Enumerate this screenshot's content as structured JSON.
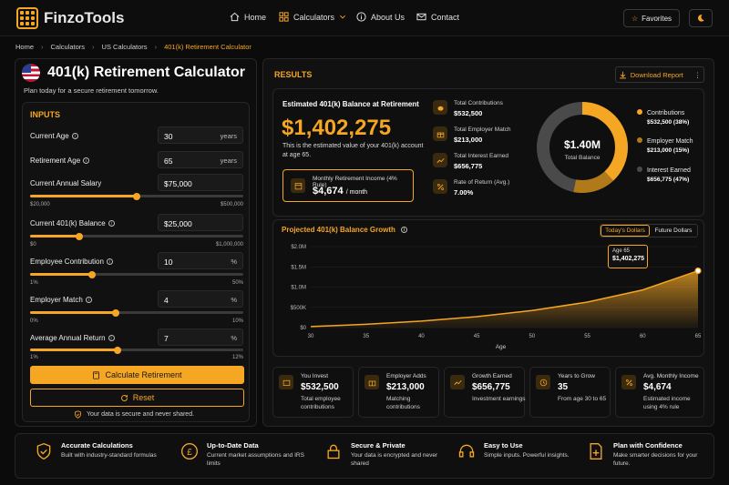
{
  "brand": {
    "name": "FinzoTools"
  },
  "nav": {
    "home": "Home",
    "calculators": "Calculators",
    "about": "About Us",
    "contact": "Contact",
    "favorites": "Favorites"
  },
  "breadcrumb": [
    "Home",
    "Calculators",
    "US Calculators",
    "401(k) Retirement Calculator"
  ],
  "page": {
    "title": "401(k) Retirement Calculator",
    "subtitle": "Plan today for a secure retirement tomorrow."
  },
  "inputs": {
    "heading": "INPUTS",
    "current_age": {
      "label": "Current Age",
      "value": "30",
      "unit": "years"
    },
    "retirement_age": {
      "label": "Retirement Age",
      "value": "65",
      "unit": "years"
    },
    "salary": {
      "label": "Current Annual Salary",
      "value": "$75,000",
      "min": "$20,000",
      "max": "$500,000",
      "level": 0.5
    },
    "balance": {
      "label": "Current 401(k) Balance",
      "value": "$25,000",
      "min": "$0",
      "max": "$1,000,000",
      "level": 0.23
    },
    "contribution": {
      "label": "Employee Contribution",
      "value": "10",
      "unit": "%",
      "min": "1%",
      "max": "50%",
      "level": 0.29
    },
    "match": {
      "label": "Employer Match",
      "value": "4",
      "unit": "%",
      "min": "0%",
      "max": "10%",
      "level": 0.4
    },
    "return": {
      "label": "Average Annual Return",
      "value": "7",
      "unit": "%",
      "min": "1%",
      "max": "12%",
      "level": 0.41
    },
    "calculate": "Calculate Retirement",
    "reset": "Reset",
    "secure": "Your data is secure and never shared."
  },
  "results": {
    "heading": "RESULTS",
    "download": "Download Report",
    "est_title": "Estimated 401(k) Balance at Retirement",
    "est_value": "$1,402,275",
    "est_desc": "This is the estimated value of your 401(k) account at age 65.",
    "monthly_label": "Monthly Retirement Income (4% Rule)",
    "monthly_value": "$4,674",
    "monthly_unit": "/ month",
    "stats": [
      {
        "label": "Total Contributions",
        "value": "$532,500"
      },
      {
        "label": "Total Employer Match",
        "value": "$213,000"
      },
      {
        "label": "Total Interest Earned",
        "value": "$656,775"
      },
      {
        "label": "Rate of Return (Avg.)",
        "value": "7.00%"
      }
    ],
    "donut": {
      "center": "$1.40M",
      "center_label": "Total Balance"
    },
    "legend": [
      {
        "name": "Contributions",
        "value": "$532,500 (38%)",
        "color": "#f5a623"
      },
      {
        "name": "Employer Match",
        "value": "$213,000 (15%)",
        "color": "#b07a1a"
      },
      {
        "name": "Interest Earned",
        "value": "$656,775 (47%)",
        "color": "#4a4a4a"
      }
    ],
    "chart_title": "Projected 401(k) Balance Growth",
    "toggle_on": "Today's Dollars",
    "toggle_off": "Future Dollars",
    "tooltip_age": "Age 65",
    "tooltip_value": "$1,402,275",
    "summary": [
      {
        "title": "You Invest",
        "value": "$532,500",
        "desc": "Total employee contributions"
      },
      {
        "title": "Employer Adds",
        "value": "$213,000",
        "desc": "Matching contributions"
      },
      {
        "title": "Growth Earned",
        "value": "$656,775",
        "desc": "Investment earnings"
      },
      {
        "title": "Years to Grow",
        "value": "35",
        "desc": "From age 30 to 65"
      },
      {
        "title": "Avg. Monthly Income",
        "value": "$4,674",
        "desc": "Estimated income using 4% rule"
      }
    ]
  },
  "features": [
    {
      "title": "Accurate Calculations",
      "desc": "Built with industry-standard formulas"
    },
    {
      "title": "Up-to-Date Data",
      "desc": "Current market assumptions and IRS limits"
    },
    {
      "title": "Secure & Private",
      "desc": "Your data is encrypted and never shared"
    },
    {
      "title": "Easy to Use",
      "desc": "Simple inputs. Powerful insights."
    },
    {
      "title": "Plan with Confidence",
      "desc": "Make smarter decisions for your future."
    }
  ],
  "chart_data": {
    "type": "area",
    "title": "Projected 401(k) Balance Growth",
    "xlabel": "Age",
    "ylabel": "",
    "x": [
      30,
      35,
      40,
      45,
      50,
      55,
      60,
      65
    ],
    "y": [
      25000,
      80000,
      160000,
      270000,
      420000,
      630000,
      930000,
      1402275
    ],
    "xticks": [
      "30",
      "35",
      "40",
      "45",
      "50",
      "55",
      "60",
      "65"
    ],
    "yticks": [
      "$0",
      "$500K",
      "$1.0M",
      "$1.5M",
      "$2.0M"
    ],
    "ylim": [
      0,
      2000000
    ],
    "xlim": [
      30,
      65
    ],
    "grid": true
  }
}
